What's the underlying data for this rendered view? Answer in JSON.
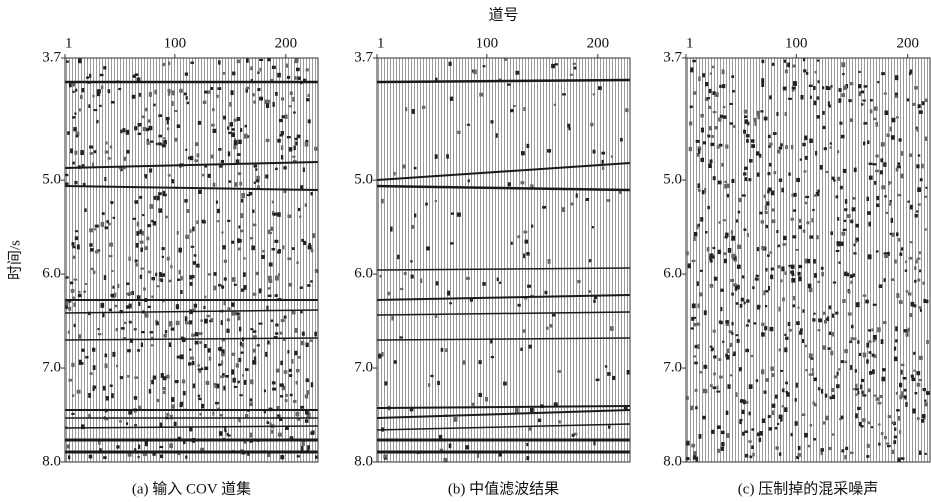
{
  "chart_data": [
    {
      "type": "seismic",
      "ylabel": "时间/s",
      "caption": "(a) 输入 COV 道集",
      "xlim": [
        1,
        229
      ],
      "xticks": [
        1,
        100,
        200
      ],
      "ylim": [
        3.7,
        8.0
      ],
      "yticks": [
        3.7,
        {
          "value": 5,
          "label": "5.0"
        },
        {
          "value": 6,
          "label": "6.0"
        },
        {
          "value": 7,
          "label": "7.0"
        },
        {
          "value": 8,
          "label": "8.0"
        }
      ]
    },
    {
      "type": "seismic",
      "xlabel": "道号",
      "caption": "(b) 中值滤波结果",
      "xlim": [
        1,
        229
      ],
      "xticks": [
        1,
        100,
        200
      ],
      "ylim": [
        3.7,
        8.0
      ],
      "yticks": [
        3.7,
        {
          "value": 5,
          "label": "5.0"
        },
        {
          "value": 6,
          "label": "6.0"
        },
        {
          "value": 7,
          "label": "7.0"
        },
        {
          "value": 8,
          "label": "8.0"
        }
      ]
    },
    {
      "type": "seismic",
      "caption": "(c) 压制掉的混采噪声",
      "xlim": [
        1,
        220
      ],
      "xticks": [
        1,
        100,
        200
      ],
      "ylim": [
        3.7,
        8.0
      ],
      "yticks": [
        3.7,
        {
          "value": 5,
          "label": "5.0"
        },
        {
          "value": 6,
          "label": "6.0"
        },
        {
          "value": 7,
          "label": "7.0"
        },
        {
          "value": 8,
          "label": "8.0"
        }
      ]
    }
  ]
}
